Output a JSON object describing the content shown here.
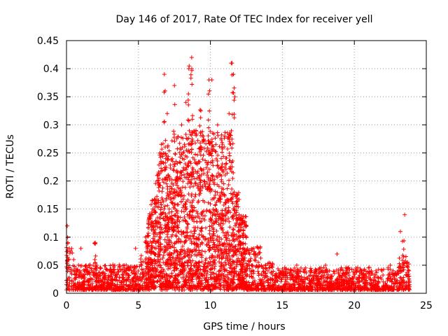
{
  "chart_data": {
    "type": "scatter",
    "title": "Day 146 of 2017, Rate Of TEC Index for receiver yell",
    "xlabel": "GPS time / hours",
    "ylabel": "ROTI / TECUs",
    "xlim": [
      0,
      25
    ],
    "ylim": [
      0,
      0.45
    ],
    "x_ticks": [
      0,
      5,
      10,
      15,
      20,
      25
    ],
    "x_tick_labels": [
      "0",
      "5",
      "10",
      "15",
      "20",
      "25"
    ],
    "y_ticks": [
      0,
      0.05,
      0.1,
      0.15,
      0.2,
      0.25,
      0.3,
      0.35,
      0.4,
      0.45
    ],
    "y_tick_labels": [
      "0",
      "0.05",
      "0.1",
      "0.15",
      "0.2",
      "0.25",
      "0.3",
      "0.35",
      "0.4",
      "0.45"
    ],
    "grid": true,
    "marker": "+",
    "color": "#ff0000",
    "series": [
      {
        "name": "ROTI",
        "description_points": [
          [
            0.05,
            0.12
          ],
          [
            0.1,
            0.09
          ],
          [
            0.2,
            0.08
          ],
          [
            0.5,
            0.06
          ],
          [
            1.0,
            0.08
          ],
          [
            2.0,
            0.09
          ],
          [
            3.0,
            0.04
          ],
          [
            4.0,
            0.05
          ],
          [
            4.8,
            0.08
          ],
          [
            5.5,
            0.1
          ],
          [
            6.0,
            0.15
          ],
          [
            6.5,
            0.25
          ],
          [
            6.8,
            0.39
          ],
          [
            7.0,
            0.32
          ],
          [
            7.5,
            0.37
          ],
          [
            8.0,
            0.3
          ],
          [
            8.3,
            0.34
          ],
          [
            8.5,
            0.4
          ],
          [
            8.7,
            0.42
          ],
          [
            9.0,
            0.29
          ],
          [
            9.5,
            0.28
          ],
          [
            9.9,
            0.38
          ],
          [
            10.1,
            0.38
          ],
          [
            10.5,
            0.3
          ],
          [
            11.0,
            0.28
          ],
          [
            11.3,
            0.32
          ],
          [
            11.5,
            0.41
          ],
          [
            11.6,
            0.39
          ],
          [
            11.7,
            0.35
          ],
          [
            12.0,
            0.14
          ],
          [
            12.5,
            0.1
          ],
          [
            13.0,
            0.07
          ],
          [
            14.0,
            0.04
          ],
          [
            15.0,
            0.04
          ],
          [
            16.0,
            0.05
          ],
          [
            17.0,
            0.04
          ],
          [
            18.0,
            0.05
          ],
          [
            18.8,
            0.07
          ],
          [
            19.5,
            0.04
          ],
          [
            20.5,
            0.04
          ],
          [
            21.5,
            0.04
          ],
          [
            22.5,
            0.05
          ],
          [
            23.2,
            0.11
          ],
          [
            23.5,
            0.14
          ],
          [
            23.8,
            0.04
          ]
        ]
      }
    ]
  }
}
